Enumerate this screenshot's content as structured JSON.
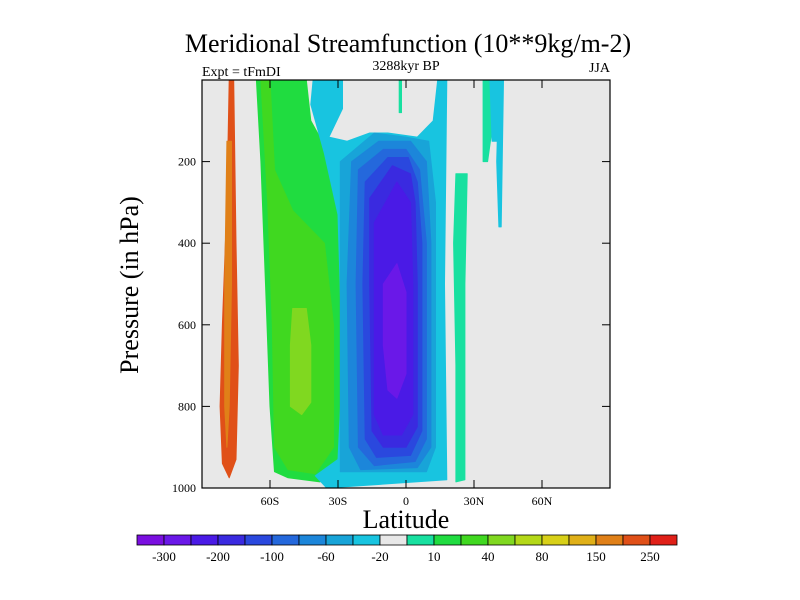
{
  "chart_data": {
    "type": "heatmap",
    "title": "Meridional Streamfunction (10**9kg/m-2)",
    "subtitle_left": "Expt = tFmDI",
    "subtitle_center": "3288kyr BP",
    "subtitle_right": "JJA",
    "xlabel": "Latitude",
    "ylabel": "Pressure (in hPa)",
    "xlim": [
      -90,
      90
    ],
    "ylim": [
      1000,
      0
    ],
    "x_ticks": [
      {
        "value": -60,
        "label": "60S"
      },
      {
        "value": -30,
        "label": "30S"
      },
      {
        "value": 0,
        "label": "0"
      },
      {
        "value": 30,
        "label": "30N"
      },
      {
        "value": 60,
        "label": "60N"
      }
    ],
    "y_ticks": [
      {
        "value": 200,
        "label": "200"
      },
      {
        "value": 400,
        "label": "400"
      },
      {
        "value": 600,
        "label": "600"
      },
      {
        "value": 800,
        "label": "800"
      },
      {
        "value": 1000,
        "label": "1000"
      }
    ],
    "colorbar": {
      "colors": [
        "#7a0fe0",
        "#6a18e8",
        "#4a1ae6",
        "#3a2ae0",
        "#2a48de",
        "#2468dc",
        "#1c86da",
        "#18a4d8",
        "#18c4e0",
        "#e8e8e8",
        "#18e0a0",
        "#20dc40",
        "#40d820",
        "#80d820",
        "#b4d818",
        "#d8d018",
        "#e0b018",
        "#e08018",
        "#e05018",
        "#e02018"
      ],
      "labels": [
        {
          "after": 1,
          "text": "-300"
        },
        {
          "after": 3,
          "text": "-200"
        },
        {
          "after": 5,
          "text": "-100"
        },
        {
          "after": 7,
          "text": "-60"
        },
        {
          "after": 9,
          "text": "-20"
        },
        {
          "after": 11,
          "text": "10"
        },
        {
          "after": 13,
          "text": "40"
        },
        {
          "after": 15,
          "text": "80"
        },
        {
          "after": 17,
          "text": "150"
        },
        {
          "after": 19,
          "text": "250"
        }
      ]
    },
    "fill_regions": [
      {
        "name": "southern-mid-lat-outer-cell",
        "level": 18,
        "points": [
          [
            -80,
            0
          ],
          [
            -78,
            0
          ],
          [
            -79,
            300
          ],
          [
            -81,
            600
          ],
          [
            -82,
            800
          ],
          [
            -81,
            940
          ],
          [
            -78,
            975
          ],
          [
            -75,
            930
          ],
          [
            -74,
            700
          ],
          [
            -75,
            400
          ],
          [
            -76,
            0
          ]
        ]
      },
      {
        "name": "southern-mid-lat-outer-inner",
        "level": 17,
        "points": [
          [
            -79,
            150
          ],
          [
            -77,
            150
          ],
          [
            -77,
            500
          ],
          [
            -78,
            800
          ],
          [
            -79,
            900
          ],
          [
            -80,
            800
          ],
          [
            -80,
            500
          ]
        ]
      },
      {
        "name": "southern-cell-outer",
        "level": 11,
        "points": [
          [
            -66,
            0
          ],
          [
            -44,
            0
          ],
          [
            -42,
            100
          ],
          [
            -32,
            200
          ],
          [
            -30,
            320
          ],
          [
            -26,
            480
          ],
          [
            -26,
            800
          ],
          [
            -27,
            940
          ],
          [
            -38,
            985
          ],
          [
            -52,
            975
          ],
          [
            -58,
            960
          ],
          [
            -60,
            800
          ],
          [
            -62,
            500
          ],
          [
            -64,
            200
          ]
        ]
      },
      {
        "name": "southern-cell-core",
        "level": 12,
        "points": [
          [
            -64,
            0
          ],
          [
            -60,
            0
          ],
          [
            -58,
            220
          ],
          [
            -50,
            320
          ],
          [
            -36,
            400
          ],
          [
            -32,
            600
          ],
          [
            -32,
            900
          ],
          [
            -40,
            965
          ],
          [
            -52,
            955
          ],
          [
            -58,
            900
          ],
          [
            -59,
            600
          ],
          [
            -61,
            300
          ]
        ]
      },
      {
        "name": "southern-cell-max",
        "level": 13,
        "points": [
          [
            -50,
            560
          ],
          [
            -44,
            560
          ],
          [
            -42,
            650
          ],
          [
            -42,
            790
          ],
          [
            -46,
            820
          ],
          [
            -51,
            800
          ],
          [
            -51,
            650
          ]
        ]
      },
      {
        "name": "hadley-outer",
        "level": 8,
        "points": [
          [
            -41,
            0
          ],
          [
            -28,
            0
          ],
          [
            -28,
            70
          ],
          [
            -34,
            140
          ],
          [
            -26,
            150
          ],
          [
            -16,
            130
          ],
          [
            -8,
            130
          ],
          [
            5,
            140
          ],
          [
            12,
            100
          ],
          [
            14,
            0
          ],
          [
            18,
            0
          ],
          [
            17,
            500
          ],
          [
            18,
            980
          ],
          [
            -35,
            1000
          ],
          [
            -40,
            970
          ],
          [
            -30,
            930
          ],
          [
            -28,
            700
          ],
          [
            -30,
            330
          ],
          [
            -36,
            180
          ],
          [
            -42,
            60
          ]
        ]
      },
      {
        "name": "hadley-l7",
        "level": 7,
        "points": [
          [
            -29,
            200
          ],
          [
            -14,
            130
          ],
          [
            0,
            140
          ],
          [
            10,
            150
          ],
          [
            13,
            300
          ],
          [
            13,
            900
          ],
          [
            9,
            960
          ],
          [
            -29,
            960
          ],
          [
            -29,
            400
          ]
        ]
      },
      {
        "name": "hadley-l6",
        "level": 6,
        "points": [
          [
            -24,
            200
          ],
          [
            -12,
            150
          ],
          [
            2,
            150
          ],
          [
            9,
            200
          ],
          [
            11,
            400
          ],
          [
            11,
            900
          ],
          [
            5,
            950
          ],
          [
            -20,
            955
          ],
          [
            -25,
            900
          ],
          [
            -26,
            500
          ]
        ]
      },
      {
        "name": "hadley-l5",
        "level": 5,
        "points": [
          [
            -21,
            220
          ],
          [
            -10,
            170
          ],
          [
            0,
            170
          ],
          [
            6,
            220
          ],
          [
            9,
            400
          ],
          [
            9,
            880
          ],
          [
            4,
            935
          ],
          [
            -14,
            945
          ],
          [
            -21,
            900
          ],
          [
            -22,
            500
          ]
        ]
      },
      {
        "name": "hadley-l4",
        "level": 4,
        "points": [
          [
            -18,
            250
          ],
          [
            -8,
            190
          ],
          [
            1,
            190
          ],
          [
            5,
            250
          ],
          [
            7,
            400
          ],
          [
            7,
            860
          ],
          [
            2,
            920
          ],
          [
            -13,
            925
          ],
          [
            -18,
            880
          ],
          [
            -19,
            500
          ]
        ]
      },
      {
        "name": "hadley-l3",
        "level": 3,
        "points": [
          [
            -16,
            290
          ],
          [
            -6,
            210
          ],
          [
            2,
            230
          ],
          [
            4,
            300
          ],
          [
            5,
            500
          ],
          [
            5,
            850
          ],
          [
            0,
            900
          ],
          [
            -10,
            900
          ],
          [
            -15,
            860
          ],
          [
            -16,
            500
          ]
        ]
      },
      {
        "name": "hadley-l2",
        "level": 2,
        "points": [
          [
            -14,
            350
          ],
          [
            -4,
            250
          ],
          [
            2,
            300
          ],
          [
            3,
            500
          ],
          [
            3,
            820
          ],
          [
            -2,
            870
          ],
          [
            -10,
            870
          ],
          [
            -14,
            820
          ],
          [
            -14,
            500
          ]
        ]
      },
      {
        "name": "hadley-l1",
        "level": 1,
        "points": [
          [
            -10,
            500
          ],
          [
            -4,
            450
          ],
          [
            0,
            520
          ],
          [
            0,
            720
          ],
          [
            -4,
            780
          ],
          [
            -8,
            760
          ],
          [
            -10,
            650
          ]
        ]
      },
      {
        "name": "northern-subtropical-band",
        "level": 10,
        "points": [
          [
            22,
            230
          ],
          [
            27,
            230
          ],
          [
            26,
            500
          ],
          [
            26,
            980
          ],
          [
            22,
            985
          ],
          [
            22,
            700
          ],
          [
            21,
            400
          ]
        ]
      },
      {
        "name": "stratospheric-jet-1",
        "level": 10,
        "points": [
          [
            -3,
            0
          ],
          [
            -2,
            0
          ],
          [
            -2,
            80
          ],
          [
            -3,
            80
          ]
        ]
      },
      {
        "name": "stratospheric-jet-2",
        "level": 10,
        "points": [
          [
            34,
            0
          ],
          [
            40,
            0
          ],
          [
            38,
            120
          ],
          [
            36,
            200
          ],
          [
            34,
            200
          ],
          [
            34,
            100
          ]
        ]
      },
      {
        "name": "stratospheric-jet-3",
        "level": 8,
        "points": [
          [
            37,
            0
          ],
          [
            42,
            0
          ],
          [
            41,
            150
          ],
          [
            38,
            150
          ]
        ]
      },
      {
        "name": "northern-upper-tail",
        "level": 8,
        "points": [
          [
            41,
            0
          ],
          [
            43,
            0
          ],
          [
            42,
            360
          ],
          [
            41,
            360
          ],
          [
            40,
            200
          ]
        ]
      }
    ]
  }
}
